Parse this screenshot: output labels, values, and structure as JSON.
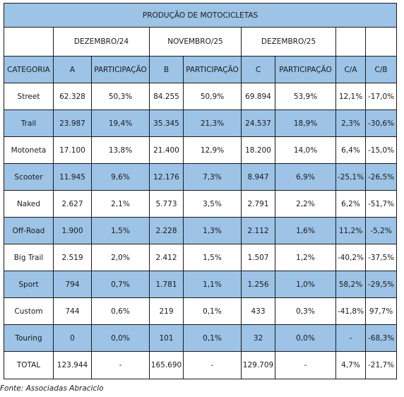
{
  "table": {
    "title": "PRODUÇÃO DE MOTOCICLETAS",
    "periods": [
      "DEZEMBRO/24",
      "NOVEMBRO/25",
      "DEZEMBRO/25"
    ],
    "headers": [
      "CATEGORIA",
      "A",
      "PARTICIPAÇÃO",
      "B",
      "PARTICIPAÇÃO",
      "C",
      "PARTICIPAÇÃO",
      "C/A",
      "C/B"
    ],
    "rows": [
      [
        "Street",
        "62.328",
        "50,3%",
        "84.255",
        "50,9%",
        "69.894",
        "53,9%",
        "12,1%",
        "-17,0%"
      ],
      [
        "Trail",
        "23.987",
        "19,4%",
        "35.345",
        "21,3%",
        "24.537",
        "18,9%",
        "2,3%",
        "-30,6%"
      ],
      [
        "Motoneta",
        "17.100",
        "13,8%",
        "21.400",
        "12,9%",
        "18.200",
        "14,0%",
        "6,4%",
        "-15,0%"
      ],
      [
        "Scooter",
        "11.945",
        "9,6%",
        "12.176",
        "7,3%",
        "8.947",
        "6,9%",
        "-25,1%",
        "-26,5%"
      ],
      [
        "Naked",
        "2.627",
        "2,1%",
        "5.773",
        "3,5%",
        "2.791",
        "2,2%",
        "6,2%",
        "-51,7%"
      ],
      [
        "Off-Road",
        "1.900",
        "1,5%",
        "2.228",
        "1,3%",
        "2.112",
        "1,6%",
        "11,2%",
        "-5,2%"
      ],
      [
        "Big Trail",
        "2.519",
        "2,0%",
        "2.412",
        "1,5%",
        "1.507",
        "1,2%",
        "-40,2%",
        "-37,5%"
      ],
      [
        "Sport",
        "794",
        "0,7%",
        "1.781",
        "1,1%",
        "1.256",
        "1,0%",
        "58,2%",
        "-29,5%"
      ],
      [
        "Custom",
        "744",
        "0,6%",
        "219",
        "0,1%",
        "433",
        "0,3%",
        "-41,8%",
        "97,7%"
      ],
      [
        "Touring",
        "0",
        "0,0%",
        "101",
        "0,1%",
        "32",
        "0,0%",
        "-",
        "-68,3%"
      ]
    ],
    "total": [
      "TOTAL",
      "123.944",
      "-",
      "165.690",
      "-",
      "129.709",
      "-",
      "4,7%",
      "-21,7%"
    ]
  },
  "source": "Fonte: Associadas Abraciclo",
  "colors": {
    "header_fill": "#9dc3e6",
    "border": "#1a1a1a"
  }
}
